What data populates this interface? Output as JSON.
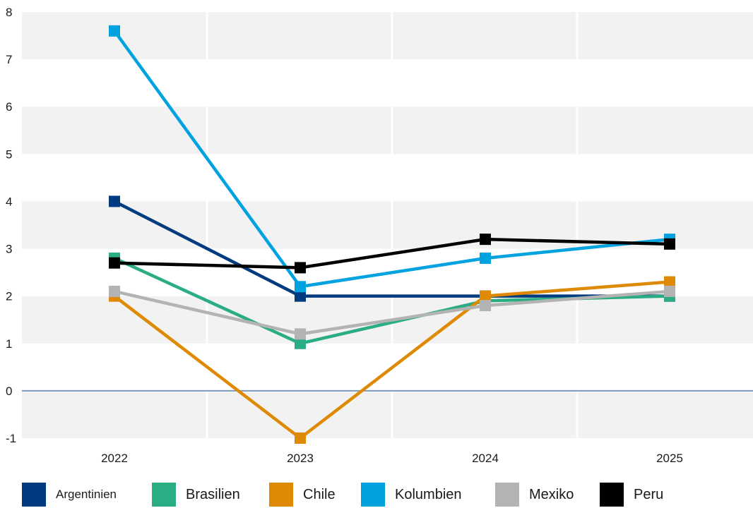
{
  "chart_data": {
    "type": "line",
    "title": "",
    "xlabel": "",
    "ylabel": "",
    "categories": [
      "2022",
      "2023",
      "2024",
      "2025"
    ],
    "ylim": [
      -1,
      8
    ],
    "yticks": [
      "-1",
      "0",
      "1",
      "2",
      "3",
      "4",
      "5",
      "6",
      "7",
      "8"
    ],
    "grid": "horizontal alternating bands, vertical white lines",
    "legend_position": "bottom",
    "series": [
      {
        "name": "Argentinien",
        "color": "#003b80",
        "values": [
          4.0,
          2.0,
          2.0,
          2.0
        ]
      },
      {
        "name": "Brasilien",
        "color": "#2aac85",
        "values": [
          2.8,
          1.0,
          1.9,
          2.0
        ]
      },
      {
        "name": "Chile",
        "color": "#df8a04",
        "values": [
          2.0,
          -1.0,
          2.0,
          2.3
        ]
      },
      {
        "name": "Kolumbien",
        "color": "#00a3e0",
        "values": [
          7.6,
          2.2,
          2.8,
          3.2
        ]
      },
      {
        "name": "Mexiko",
        "color": "#b3b3b3",
        "values": [
          2.1,
          1.2,
          1.8,
          2.1
        ]
      },
      {
        "name": "Peru",
        "color": "#000000",
        "values": [
          2.7,
          2.6,
          3.2,
          3.1
        ]
      }
    ]
  }
}
